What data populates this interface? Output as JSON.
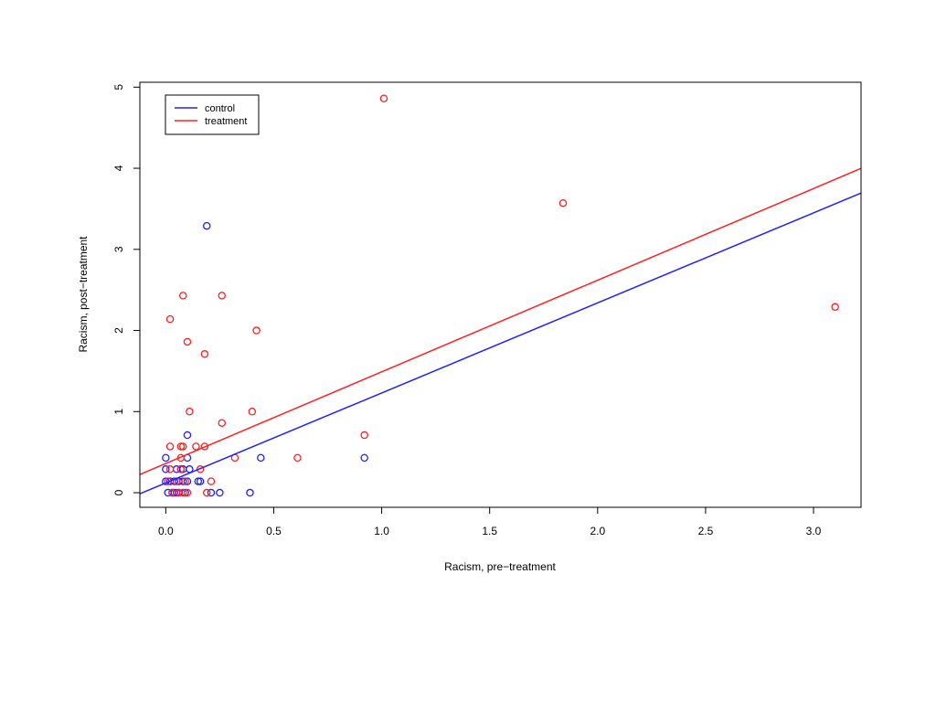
{
  "chart_data": {
    "type": "scatter",
    "title": "",
    "xlabel": "Racism, pre−treatment",
    "ylabel": "Racism, post−treatment",
    "xlim": [
      -0.12,
      3.22
    ],
    "ylim": [
      -0.18,
      5.06
    ],
    "x_ticks": [
      0.0,
      0.5,
      1.0,
      1.5,
      2.0,
      2.5,
      3.0
    ],
    "x_tick_labels": [
      "0.0",
      "0.5",
      "1.0",
      "1.5",
      "2.0",
      "2.5",
      "3.0"
    ],
    "y_ticks": [
      0,
      1,
      2,
      3,
      4,
      5
    ],
    "y_tick_labels": [
      "0",
      "1",
      "2",
      "3",
      "4",
      "5"
    ],
    "grid": false,
    "legend": {
      "placement": "top-left",
      "entries": [
        {
          "label": "control",
          "color": "#2020ff"
        },
        {
          "label": "treatment",
          "color": "#ff2020"
        }
      ]
    },
    "series": [
      {
        "name": "control",
        "color": "#2020ff",
        "points": [
          [
            0.0,
            0.43
          ],
          [
            0.0,
            0.29
          ],
          [
            0.0,
            0.14
          ],
          [
            0.01,
            0.0
          ],
          [
            0.02,
            0.14
          ],
          [
            0.03,
            0.0
          ],
          [
            0.04,
            0.14
          ],
          [
            0.05,
            0.29
          ],
          [
            0.05,
            0.0
          ],
          [
            0.06,
            0.14
          ],
          [
            0.07,
            0.29
          ],
          [
            0.08,
            0.14
          ],
          [
            0.09,
            0.0
          ],
          [
            0.1,
            0.43
          ],
          [
            0.1,
            0.71
          ],
          [
            0.11,
            0.29
          ],
          [
            0.1,
            0.14
          ],
          [
            0.15,
            0.14
          ],
          [
            0.16,
            0.14
          ],
          [
            0.19,
            3.29
          ],
          [
            0.21,
            0.0
          ],
          [
            0.25,
            0.0
          ],
          [
            0.39,
            0.0
          ],
          [
            0.44,
            0.43
          ],
          [
            0.92,
            0.43
          ],
          [
            0.06,
            0.0
          ],
          [
            0.08,
            0.29
          ],
          [
            0.04,
            0.0
          ]
        ],
        "fit_line": {
          "intercept": 0.12,
          "slope": 1.11
        }
      },
      {
        "name": "treatment",
        "color": "#ff2020",
        "points": [
          [
            0.01,
            0.14
          ],
          [
            0.02,
            0.57
          ],
          [
            0.02,
            0.29
          ],
          [
            0.02,
            2.14
          ],
          [
            0.03,
            0.0
          ],
          [
            0.05,
            0.14
          ],
          [
            0.06,
            0.0
          ],
          [
            0.07,
            0.57
          ],
          [
            0.07,
            0.29
          ],
          [
            0.07,
            0.43
          ],
          [
            0.08,
            0.0
          ],
          [
            0.08,
            0.57
          ],
          [
            0.08,
            2.43
          ],
          [
            0.09,
            0.14
          ],
          [
            0.1,
            1.86
          ],
          [
            0.1,
            0.0
          ],
          [
            0.11,
            1.0
          ],
          [
            0.14,
            0.57
          ],
          [
            0.16,
            0.29
          ],
          [
            0.18,
            0.57
          ],
          [
            0.18,
            1.71
          ],
          [
            0.19,
            0.0
          ],
          [
            0.21,
            0.14
          ],
          [
            0.26,
            2.43
          ],
          [
            0.26,
            0.86
          ],
          [
            0.32,
            0.43
          ],
          [
            0.4,
            1.0
          ],
          [
            0.42,
            2.0
          ],
          [
            0.61,
            0.43
          ],
          [
            0.92,
            0.71
          ],
          [
            1.01,
            4.86
          ],
          [
            1.84,
            3.57
          ],
          [
            3.1,
            2.29
          ]
        ],
        "fit_line": {
          "intercept": 0.36,
          "slope": 1.13
        }
      }
    ]
  }
}
